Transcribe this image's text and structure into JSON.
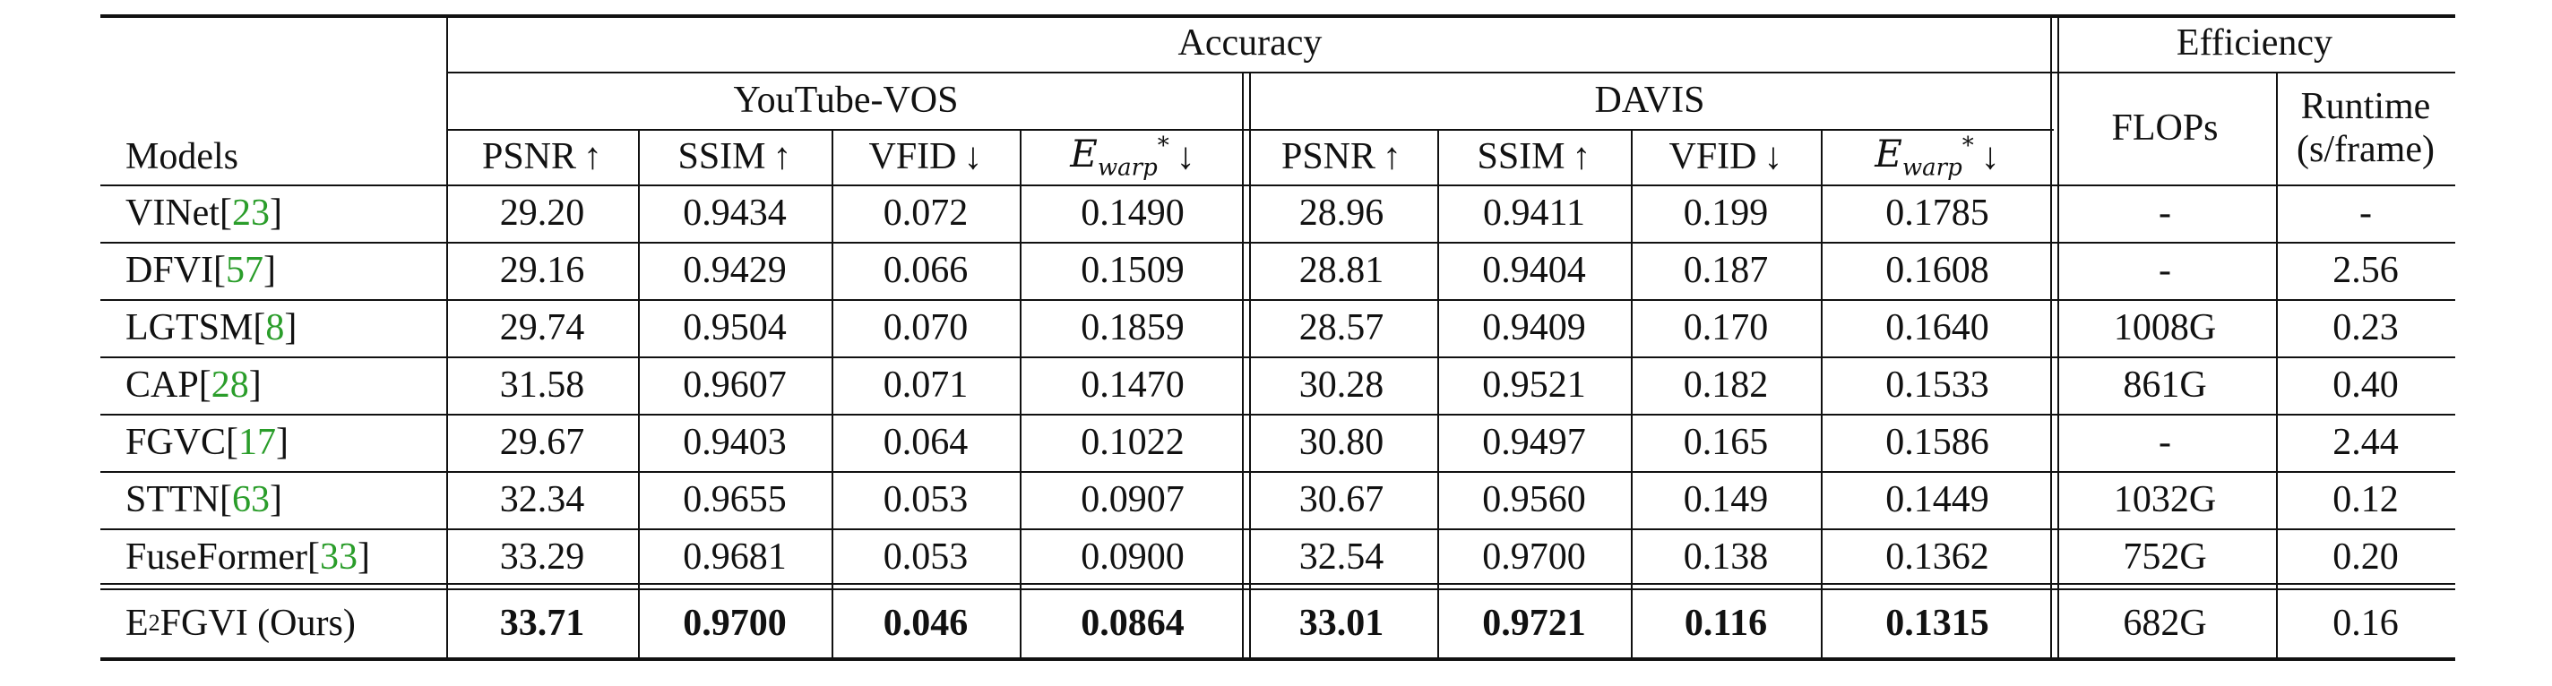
{
  "header": {
    "accuracy": "Accuracy",
    "efficiency": "Efficiency",
    "youtube_vos": "YouTube-VOS",
    "davis": "DAVIS",
    "models": "Models",
    "flops": "FLOPs",
    "runtime_line1": "Runtime",
    "runtime_line2": "(s/frame)",
    "metrics": {
      "psnr": "PSNR",
      "ssim": "SSIM",
      "vfid": "VFID",
      "ewarp_base": "E",
      "ewarp_sub": "warp",
      "ewarp_sup": "*",
      "up": "↑",
      "down": "↓"
    }
  },
  "rows": [
    {
      "model": "VINet ",
      "ref": "23",
      "yt": [
        "29.20",
        "0.9434",
        "0.072",
        "0.1490"
      ],
      "davis": [
        "28.96",
        "0.9411",
        "0.199",
        "0.1785"
      ],
      "flops": "-",
      "runtime": "-"
    },
    {
      "model": "DFVI ",
      "ref": "57",
      "yt": [
        "29.16",
        "0.9429",
        "0.066",
        "0.1509"
      ],
      "davis": [
        "28.81",
        "0.9404",
        "0.187",
        "0.1608"
      ],
      "flops": "-",
      "runtime": "2.56"
    },
    {
      "model": "LGTSM ",
      "ref": "8",
      "yt": [
        "29.74",
        "0.9504",
        "0.070",
        "0.1859"
      ],
      "davis": [
        "28.57",
        "0.9409",
        "0.170",
        "0.1640"
      ],
      "flops": "1008G",
      "runtime": "0.23"
    },
    {
      "model": "CAP ",
      "ref": "28",
      "yt": [
        "31.58",
        "0.9607",
        "0.071",
        "0.1470"
      ],
      "davis": [
        "30.28",
        "0.9521",
        "0.182",
        "0.1533"
      ],
      "flops": "861G",
      "runtime": "0.40"
    },
    {
      "model": "FGVC ",
      "ref": "17",
      "yt": [
        "29.67",
        "0.9403",
        "0.064",
        "0.1022"
      ],
      "davis": [
        "30.80",
        "0.9497",
        "0.165",
        "0.1586"
      ],
      "flops": "-",
      "runtime": "2.44"
    },
    {
      "model": "STTN ",
      "ref": "63",
      "yt": [
        "32.34",
        "0.9655",
        "0.053",
        "0.0907"
      ],
      "davis": [
        "30.67",
        "0.9560",
        "0.149",
        "0.1449"
      ],
      "flops": "1032G",
      "runtime": "0.12"
    },
    {
      "model": "FuseFormer ",
      "ref": "33",
      "yt": [
        "33.29",
        "0.9681",
        "0.053",
        "0.0900"
      ],
      "davis": [
        "32.54",
        "0.9700",
        "0.138",
        "0.1362"
      ],
      "flops": "752G",
      "runtime": "0.20"
    }
  ],
  "ours": {
    "model_e": "E",
    "model_sup": "2",
    "model_rest": "FGVI (Ours)",
    "yt": [
      "33.71",
      "0.9700",
      "0.046",
      "0.0864"
    ],
    "davis": [
      "33.01",
      "0.9721",
      "0.116",
      "0.1315"
    ],
    "flops": "682G",
    "runtime": "0.16"
  }
}
